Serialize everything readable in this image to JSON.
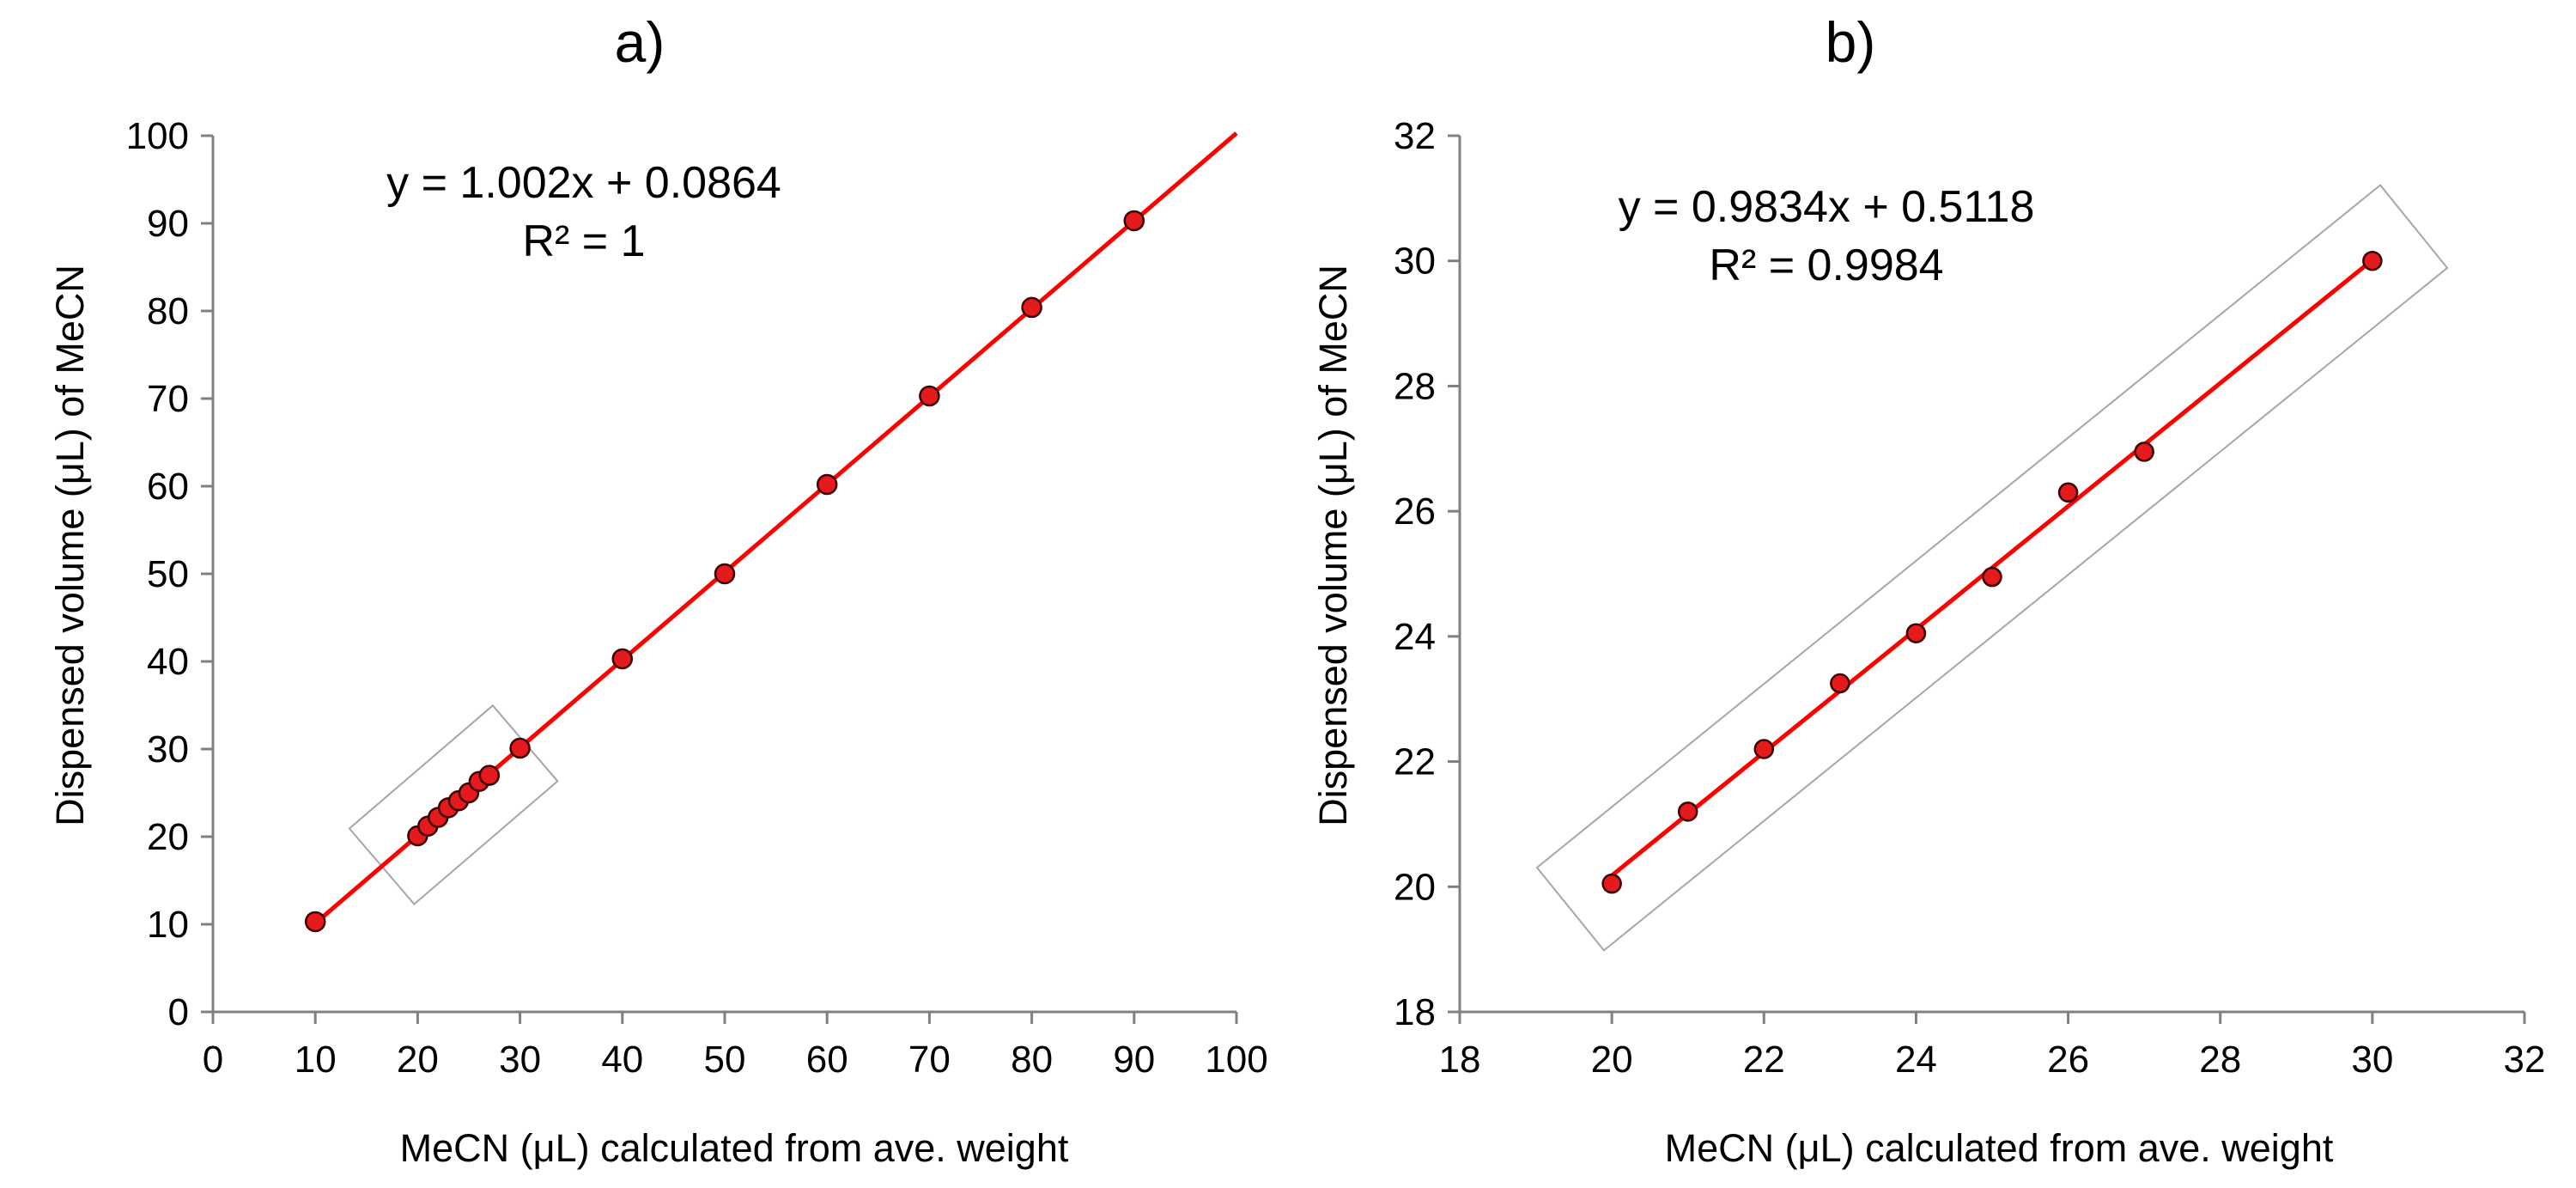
{
  "chart_data": [
    {
      "type": "scatter",
      "panel_label": "a)",
      "xlabel": "MeCN (μL) calculated from ave. weight",
      "ylabel": "Dispensed volume (μL) of MeCN",
      "xlim": [
        0,
        100
      ],
      "ylim": [
        0,
        100
      ],
      "xticks": [
        0,
        10,
        20,
        30,
        40,
        50,
        60,
        70,
        80,
        90,
        100
      ],
      "yticks": [
        0,
        10,
        20,
        30,
        40,
        50,
        60,
        70,
        80,
        90,
        100
      ],
      "grid": false,
      "series": [
        {
          "name": "Dispensed volume",
          "x": [
            10,
            20,
            21,
            22,
            23,
            24,
            25,
            26,
            27,
            30,
            40,
            50,
            60,
            70,
            80,
            90
          ],
          "y": [
            10.3,
            20.1,
            21.2,
            22.2,
            23.3,
            24.1,
            25.0,
            26.3,
            27.0,
            30.1,
            40.3,
            50.0,
            60.2,
            70.3,
            80.4,
            90.3
          ]
        }
      ],
      "trendline": {
        "slope": 1.002,
        "intercept": 0.0864,
        "x_range": [
          10,
          100
        ]
      },
      "annotations": [
        "y = 1.002x + 0.0864",
        "R² = 1"
      ],
      "highlight_box": {
        "x_range": [
          20,
          27
        ],
        "description": "zoomed region shown in panel b"
      }
    },
    {
      "type": "scatter",
      "panel_label": "b)",
      "xlabel": "MeCN (μL) calculated from ave. weight",
      "ylabel": "Dispensed volume (μL) of MeCN",
      "xlim": [
        18,
        32
      ],
      "ylim": [
        18,
        32
      ],
      "xticks": [
        18,
        20,
        22,
        24,
        26,
        28,
        30,
        32
      ],
      "yticks": [
        18,
        20,
        22,
        24,
        26,
        28,
        30,
        32
      ],
      "grid": false,
      "series": [
        {
          "name": "Dispensed volume",
          "x": [
            20,
            21,
            22,
            23,
            24,
            25,
            26,
            27,
            30
          ],
          "y": [
            20.05,
            21.2,
            22.2,
            23.25,
            24.05,
            24.95,
            26.3,
            26.95,
            30.0
          ]
        }
      ],
      "trendline": {
        "slope": 0.9834,
        "intercept": 0.5118,
        "x_range": [
          20,
          30
        ]
      },
      "annotations": [
        "y = 0.9834x + 0.5118",
        "R² = 0.9984"
      ],
      "highlight_box": {
        "x_range": [
          20,
          30
        ],
        "description": "outline around data"
      }
    }
  ],
  "colors": {
    "marker_fill": "#e41a1c",
    "marker_stroke": "#3a0000",
    "trendline": "#ff0000",
    "axis": "#808080",
    "highlight_box": "#a6a6a6"
  }
}
